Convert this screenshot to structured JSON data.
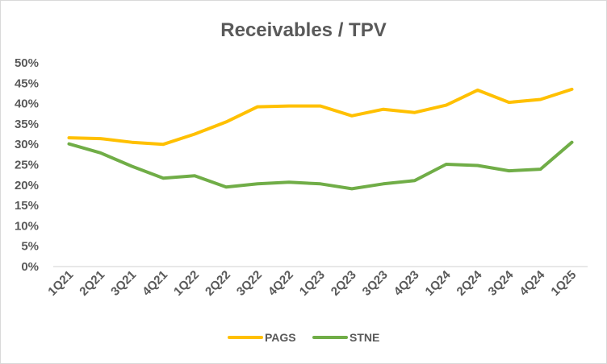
{
  "chart_data": {
    "type": "line",
    "title": "Receivables / TPV",
    "xlabel": "",
    "ylabel": "",
    "categories": [
      "1Q21",
      "2Q21",
      "3Q21",
      "4Q21",
      "1Q22",
      "2Q22",
      "3Q22",
      "4Q22",
      "1Q23",
      "2Q23",
      "3Q23",
      "4Q23",
      "1Q24",
      "2Q24",
      "3Q24",
      "4Q24",
      "1Q25"
    ],
    "ylim": [
      0,
      50
    ],
    "yticks": [
      0,
      5,
      10,
      15,
      20,
      25,
      30,
      35,
      40,
      45,
      50
    ],
    "ytick_labels": [
      "0%",
      "5%",
      "10%",
      "15%",
      "20%",
      "25%",
      "30%",
      "35%",
      "40%",
      "45%",
      "50%"
    ],
    "grid": false,
    "legend_position": "bottom",
    "series": [
      {
        "name": "PAGS",
        "color": "#FFC000",
        "values": [
          31.6,
          31.4,
          30.5,
          30.0,
          32.5,
          35.5,
          39.2,
          39.4,
          39.4,
          37.0,
          38.6,
          37.8,
          39.6,
          43.3,
          40.3,
          41.0,
          43.5
        ]
      },
      {
        "name": "STNE",
        "color": "#70AD47",
        "values": [
          30.1,
          27.9,
          24.6,
          21.7,
          22.3,
          19.5,
          20.3,
          20.7,
          20.3,
          19.1,
          20.3,
          21.1,
          25.1,
          24.8,
          23.5,
          23.9,
          30.5
        ]
      }
    ]
  }
}
